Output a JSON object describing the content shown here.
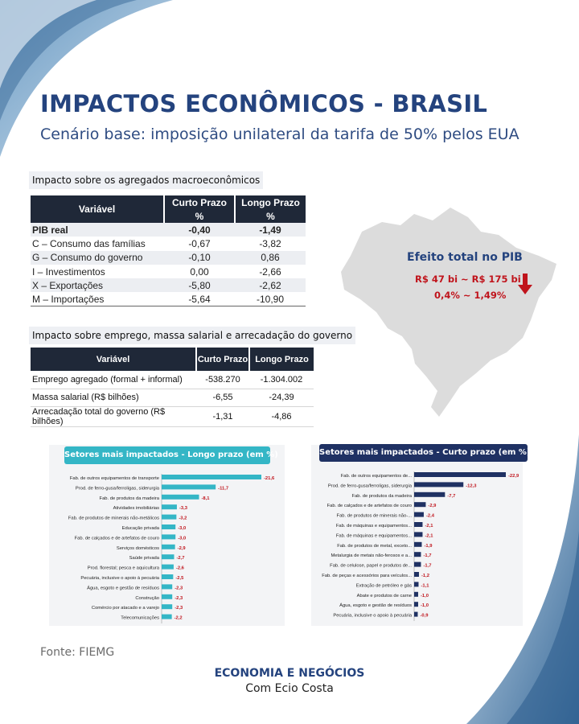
{
  "header": {
    "title": "IMPACTOS ECONÔMICOS - BRASIL",
    "subtitle": "Cenário base: imposição unilateral da tarifa de 50% pelos EUA"
  },
  "macro": {
    "label": "Impacto sobre os agregados macroeconômicos",
    "col_var": "Variável",
    "col_short": "Curto Prazo",
    "col_long": "Longo Prazo",
    "unit": "%",
    "rows": [
      {
        "name": "PIB real",
        "short": "-0,40",
        "long": "-1,49"
      },
      {
        "name": "C – Consumo das famílias",
        "short": "-0,67",
        "long": "-3,82"
      },
      {
        "name": "G – Consumo do governo",
        "short": "-0,10",
        "long": "0,86"
      },
      {
        "name": "I – Investimentos",
        "short": "0,00",
        "long": "-2,66"
      },
      {
        "name": "X – Exportações",
        "short": "-5,80",
        "long": "-2,62"
      },
      {
        "name": "M – Importações",
        "short": "-5,64",
        "long": "-10,90"
      }
    ]
  },
  "employment": {
    "label": "Impacto sobre emprego, massa salarial e arrecadação do governo",
    "col_var": "Variável",
    "col_short": "Curto Prazo",
    "col_long": "Longo Prazo",
    "rows": [
      {
        "name": "Emprego agregado (formal + informal)",
        "short": "-538.270",
        "long": "-1.304.002"
      },
      {
        "name": "Massa salarial (R$ bilhões)",
        "short": "-6,55",
        "long": "-24,39"
      },
      {
        "name": "Arrecadação total do governo (R$ bilhões)",
        "short": "-1,31",
        "long": "-4,86"
      }
    ]
  },
  "pib_effect": {
    "title": "Efeito total no PIB",
    "range": "R$ 47 bi ~ R$ 175 bi",
    "pct": "0,4%  ~  1,49%",
    "arrow_icon": "down-arrow-icon",
    "arrow_color": "#c0141c"
  },
  "colors": {
    "title": "#24437e",
    "long_bar": "#34b6c6",
    "short_bar": "#1f3163",
    "negative_label": "#c0141c"
  },
  "chart_data": [
    {
      "type": "bar",
      "orientation": "horizontal",
      "title": "Setores mais impactados - Longo prazo (em %)",
      "categories": [
        "Fab. de outros equipamentos de transporte",
        "Prod. de ferro-gusa/ferroligas, siderurgia",
        "Fab. de produtos da madeira",
        "Atividades imobiliárias",
        "Fab. de produtos de minerais não-metálicos",
        "Educação privada",
        "Fab. de calçados e de artefatos de couro",
        "Serviços domésticos",
        "Saúde privada",
        "Prod. florestal; pesca e aquicultura",
        "Pecuária, inclusive o apoio à pecuária",
        "Água, esgoto e gestão de resíduos",
        "Construção",
        "Comércio por atacado e a varejo",
        "Telecomunicações"
      ],
      "values": [
        -21.6,
        -11.7,
        -8.1,
        -3.3,
        -3.2,
        -3.0,
        -3.0,
        -2.9,
        -2.7,
        -2.6,
        -2.5,
        -2.3,
        -2.3,
        -2.3,
        -2.2
      ],
      "value_labels": [
        "-21,6",
        "-11,7",
        "-8,1",
        "-3,3",
        "-3,2",
        "-3,0",
        "-3,0",
        "-2,9",
        "-2,7",
        "-2,6",
        "-2,5",
        "-2,3",
        "-2,3",
        "-2,3",
        "-2,2"
      ],
      "color": "#34b6c6"
    },
    {
      "type": "bar",
      "orientation": "horizontal",
      "title": "Setores mais impactados - Curto prazo (em %)",
      "categories": [
        "Fab. de outros equipamentos de...",
        "Prod. de ferro-gusa/ferroligas, siderurgia",
        "Fab. de produtos da madeira",
        "Fab. de calçados e de artefatos de couro",
        "Fab. de produtos de minerais não-...",
        "Fab. de máquinas e equipamentos...",
        "Fab. de máquinas e equipamentos...",
        "Fab. de produtos de metal, exceto...",
        "Metalurgia de metais não-ferosos e a...",
        "Fab. de celulose, papel e produtos de...",
        "Fab. de peças e acessórios para veículos...",
        "Extração de petróleo e gás",
        "Abate e produtos de carne",
        "Água, esgoto e gestão de resíduos",
        "Pecuária, inclusive o apoio à pecuária"
      ],
      "values": [
        -22.9,
        -12.3,
        -7.7,
        -2.9,
        -2.4,
        -2.1,
        -2.1,
        -1.9,
        -1.7,
        -1.7,
        -1.2,
        -1.1,
        -1.0,
        -1.0,
        -0.9
      ],
      "value_labels": [
        "-22,9",
        "-12,3",
        "-7,7",
        "-2,9",
        "-2,4",
        "-2,1",
        "-2,1",
        "-1,9",
        "-1,7",
        "-1,7",
        "-1,2",
        "-1,1",
        "-1,0",
        "-1,0",
        "-0,9"
      ],
      "color": "#1f3163"
    }
  ],
  "footer": {
    "source": "Fonte: FIEMG",
    "brand_name": "ECONOMIA E NEGÓCIOS",
    "brand_author": "Com Ecio Costa"
  }
}
